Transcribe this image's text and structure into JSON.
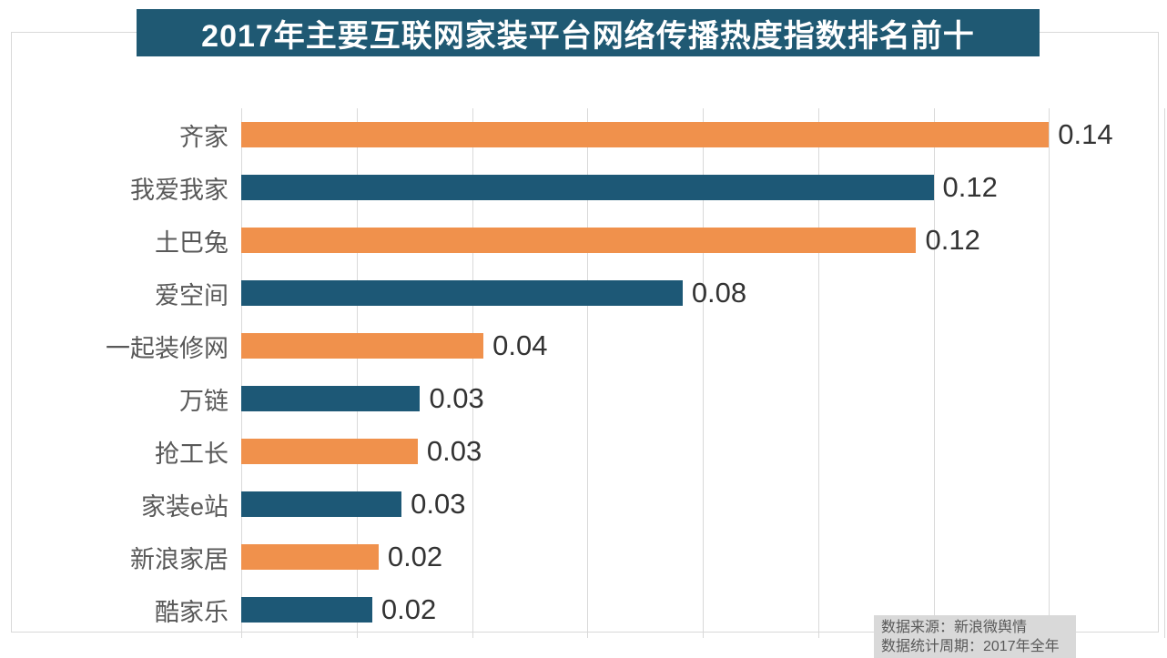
{
  "title": "2017年主要互联网家装平台网络传播热度指数排名前十",
  "source_note": {
    "line1": "数据来源：新浪微舆情",
    "line2": "数据统计周期：2017年全年"
  },
  "colors": {
    "banner_background": "#1F5973",
    "bar_orange": "#F0914C",
    "bar_blue": "#1D5876",
    "gridline": "#D9D9D9",
    "category_label": "#595959",
    "value_label": "#333333",
    "source_box_background": "#D9D9D9",
    "source_text": "#595959"
  },
  "chart_data": {
    "type": "bar",
    "orientation": "horizontal",
    "title": "2017年主要互联网家装平台网络传播热度指数排名前十",
    "categories": [
      "齐家",
      "我爱我家",
      "土巴兔",
      "爱空间",
      "一起装修网",
      "万链",
      "抢工长",
      "家装e站",
      "新浪家居",
      "酷家乐"
    ],
    "values": [
      0.14,
      0.12,
      0.12,
      0.08,
      0.04,
      0.03,
      0.03,
      0.03,
      0.02,
      0.02
    ],
    "value_labels": [
      "0.14",
      "0.12",
      "0.12",
      "0.08",
      "0.04",
      "0.03",
      "0.03",
      "0.03",
      "0.02",
      "0.02"
    ],
    "values_precise": [
      0.14,
      0.12,
      0.117,
      0.0765,
      0.042,
      0.031,
      0.0306,
      0.0278,
      0.0238,
      0.0227
    ],
    "xlim": [
      0,
      0.16
    ],
    "grid_step": 0.02,
    "grid": "vertical-only",
    "legend": "none",
    "bar_colors_alternating": [
      "#F0914C",
      "#1D5876"
    ],
    "xlabel": "",
    "ylabel": ""
  }
}
